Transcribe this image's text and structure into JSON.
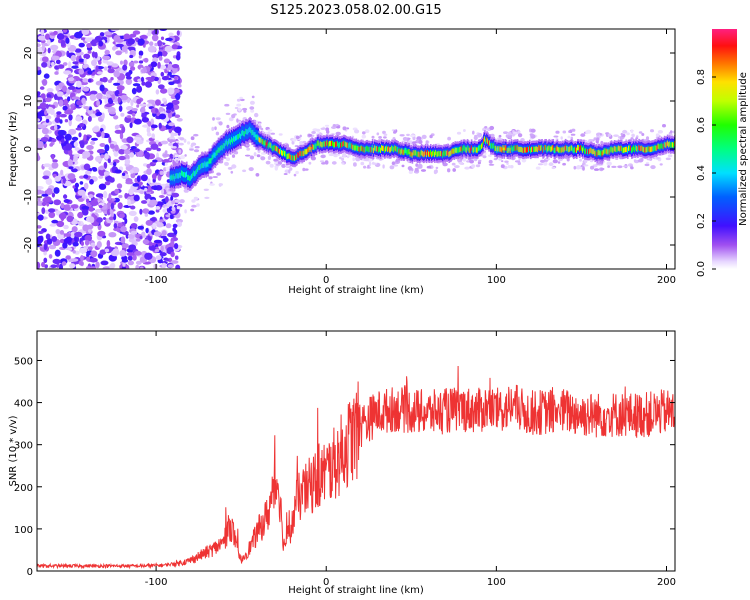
{
  "title": "S125.2023.058.02.00.G15",
  "chart_data": [
    {
      "type": "heatmap",
      "xlabel": "Height of straight line (km)",
      "ylabel": "Frequency (Hz)",
      "xlim": [
        -170,
        205
      ],
      "ylim": [
        -25,
        25
      ],
      "xticks": [
        -100,
        0,
        100,
        200
      ],
      "yticks": [
        -20,
        -10,
        0,
        10,
        20
      ],
      "colorbar": {
        "label": "Normalized spectral amplitude",
        "range": [
          0,
          1
        ],
        "ticks": [
          0.0,
          0.2,
          0.4,
          0.6,
          0.8
        ],
        "tick_labels": [
          "0.0",
          "0.2",
          "0.4",
          "0.6",
          "0.8"
        ],
        "colormap": "rainbow (white-violet-blue-cyan-green-yellow-red-pink)"
      },
      "trace_center_hz": {
        "x": [
          -90,
          -85,
          -80,
          -75,
          -70,
          -65,
          -60,
          -55,
          -50,
          -45,
          -40,
          -35,
          -30,
          -25,
          -20,
          -15,
          -10,
          -5,
          0,
          10,
          20,
          30,
          40,
          50,
          60,
          70,
          80,
          90,
          93,
          96,
          100,
          110,
          120,
          130,
          140,
          150,
          160,
          170,
          180,
          190,
          200,
          205
        ],
        "y": [
          -6,
          -5,
          -6,
          -4,
          -3,
          -1,
          1,
          2,
          3,
          4,
          2,
          1,
          0,
          -1,
          -2,
          -1,
          0,
          1,
          1,
          1,
          0,
          0,
          0,
          -1,
          -1,
          -1,
          0,
          0,
          2,
          1,
          0,
          0,
          0,
          0,
          0,
          0,
          -1,
          0,
          0,
          0,
          1,
          1
        ]
      },
      "noise_region_x": [
        -170,
        -90
      ],
      "grid": false
    },
    {
      "type": "line",
      "xlabel": "Height of straight line (km)",
      "ylabel": "SNR (10 * v/v)",
      "xlim": [
        -170,
        205
      ],
      "ylim": [
        0,
        570
      ],
      "xticks": [
        -100,
        0,
        100,
        200
      ],
      "yticks": [
        0,
        100,
        200,
        300,
        400,
        500
      ],
      "line_color": "#ee3333",
      "series": [
        {
          "x": [
            -170,
            -150,
            -130,
            -110,
            -95,
            -85,
            -80,
            -75,
            -70,
            -65,
            -60,
            -58,
            -56,
            -54,
            -52,
            -50,
            -45,
            -40,
            -35,
            -32,
            -30,
            -28,
            -25,
            -22,
            -20,
            -18,
            -15,
            -12,
            -10,
            -5,
            0,
            5,
            10,
            15,
            20,
            25,
            30,
            40,
            50,
            60,
            70,
            80,
            90,
            95,
            100,
            105,
            110,
            115,
            120,
            130,
            140,
            150,
            160,
            170,
            180,
            190,
            200,
            205
          ],
          "y": [
            12,
            12,
            12,
            12,
            14,
            20,
            25,
            35,
            45,
            55,
            70,
            95,
            110,
            80,
            40,
            25,
            55,
            95,
            130,
            170,
            200,
            215,
            60,
            90,
            110,
            160,
            180,
            190,
            200,
            220,
            235,
            255,
            285,
            315,
            340,
            360,
            375,
            385,
            380,
            375,
            380,
            385,
            380,
            390,
            380,
            385,
            395,
            380,
            375,
            378,
            380,
            372,
            370,
            372,
            370,
            372,
            378,
            375
          ]
        }
      ],
      "grid": false
    }
  ]
}
